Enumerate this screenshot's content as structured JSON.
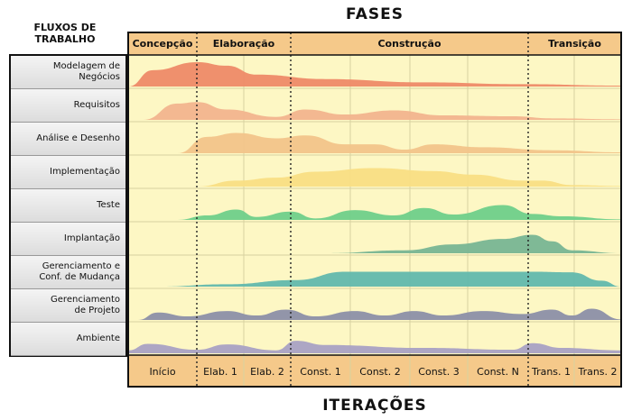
{
  "titles": {
    "fases": "FASES",
    "fluxos": "FLUXOS DE\nTRABALHO",
    "iteracoes": "ITERAÇÕES"
  },
  "phases": [
    {
      "label": "Concepção"
    },
    {
      "label": "Elaboração"
    },
    {
      "label": "Construção"
    },
    {
      "label": "Transição"
    }
  ],
  "iterations": [
    {
      "label": "Início"
    },
    {
      "label": "Elab. 1"
    },
    {
      "label": "Elab. 2"
    },
    {
      "label": "Const. 1"
    },
    {
      "label": "Const. 2"
    },
    {
      "label": "Const. 3"
    },
    {
      "label": "Const. N"
    },
    {
      "label": "Trans. 1"
    },
    {
      "label": "Trans. 2"
    }
  ],
  "workflows": [
    {
      "label": "Modelagem de Negócios",
      "color": "#ee8a68"
    },
    {
      "label": "Requisitos",
      "color": "#f2b48e"
    },
    {
      "label": "Análise e Desenho",
      "color": "#f2c48a"
    },
    {
      "label": "Implementação",
      "color": "#f9de84"
    },
    {
      "label": "Teste",
      "color": "#6fcf8a"
    },
    {
      "label": "Implantação",
      "color": "#78b594"
    },
    {
      "label": "Gerenciamento e\nConf. de Mudança",
      "color": "#62b8ad"
    },
    {
      "label": "Gerenciamento\nde Projeto",
      "color": "#8c8fa8"
    },
    {
      "label": "Ambiente",
      "color": "#a9a1c4"
    }
  ],
  "colors": {
    "header_band": "#f5c98a",
    "chart_bg": "#fdf7c4",
    "border": "#111111"
  }
}
